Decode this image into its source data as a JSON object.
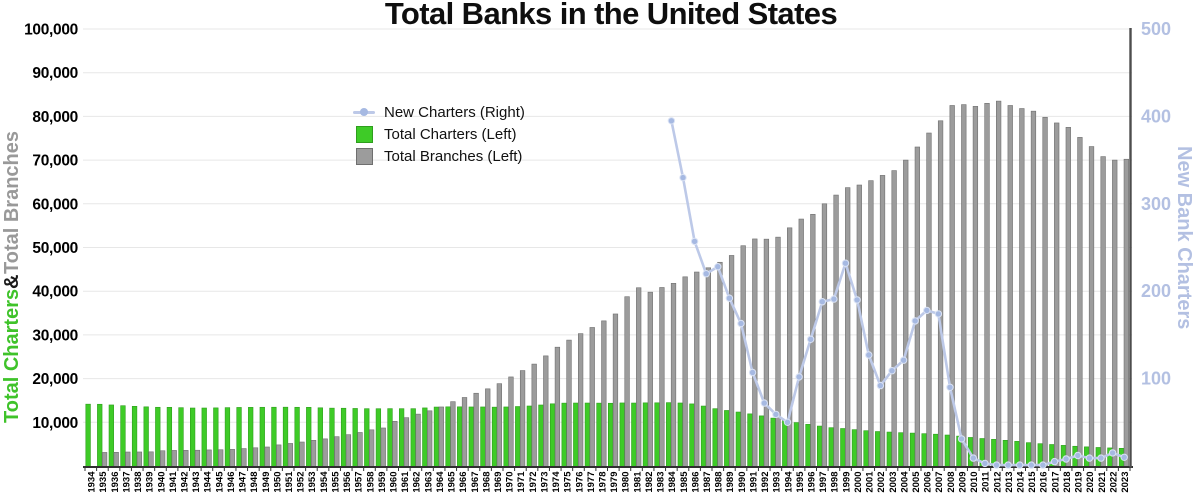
{
  "title": "Total Banks in the United States",
  "left_axis": {
    "title_charters": "Total Charters",
    "title_amp": " & ",
    "title_branches": "Total Branches",
    "ticks": [
      "10,000",
      "20,000",
      "30,000",
      "40,000",
      "50,000",
      "60,000",
      "70,000",
      "80,000",
      "90,000",
      "100,000"
    ]
  },
  "right_axis": {
    "title": "New Bank Charters",
    "ticks": [
      "100",
      "200",
      "300",
      "400",
      "500"
    ]
  },
  "legend": {
    "items": [
      {
        "label": "New Charters (Right)",
        "marker": "line-dot"
      },
      {
        "label": "Total Charters (Left)",
        "marker": "green-square"
      },
      {
        "label": "Total Branches (Left)",
        "marker": "gray-square"
      }
    ]
  },
  "colors": {
    "charters_green": "#3ecb27",
    "charters_green_edge": "#2e9e1d",
    "branches_gray": "#9c9c9c",
    "branches_gray_edge": "#6f6f6f",
    "line_blue": "#bdc9e8",
    "dot_blue": "#a6b9e2",
    "dot_edge": "#dbe3f4",
    "right_label_blue": "#b3c0e2",
    "left_title_green": "#3fc32a",
    "left_title_gray": "#999999",
    "gridline": "#e7e7e7",
    "x_axis_line": "#2f2f2f",
    "right_axis_line": "#4d4d4d",
    "tick_label_black": "#000000"
  },
  "chart_data": {
    "type": "bar",
    "title": "Total Banks in the United States",
    "left_ylabel": "Total Charters & Total Branches",
    "right_ylabel": "New Bank Charters",
    "left_ylim": [
      0,
      100000
    ],
    "right_ylim": [
      0,
      500
    ],
    "grid": true,
    "legend_position": "upper-left-inside",
    "categories": [
      "1934",
      "1935",
      "1936",
      "1937",
      "1938",
      "1939",
      "1940",
      "1941",
      "1942",
      "1943",
      "1944",
      "1945",
      "1946",
      "1947",
      "1948",
      "1949",
      "1950",
      "1951",
      "1952",
      "1953",
      "1954",
      "1955",
      "1956",
      "1957",
      "1958",
      "1959",
      "1960",
      "1961",
      "1962",
      "1963",
      "1964",
      "1965",
      "1966",
      "1967",
      "1968",
      "1969",
      "1970",
      "1971",
      "1972",
      "1973",
      "1974",
      "1975",
      "1976",
      "1977",
      "1978",
      "1979",
      "1980",
      "1981",
      "1982",
      "1983",
      "1984",
      "1985",
      "1986",
      "1987",
      "1988",
      "1989",
      "1990",
      "1991",
      "1992",
      "1993",
      "1994",
      "1995",
      "1996",
      "1997",
      "1998",
      "1999",
      "2000",
      "2001",
      "2002",
      "2003",
      "2004",
      "2005",
      "2006",
      "2007",
      "2008",
      "2009",
      "2010",
      "2011",
      "2012",
      "2013",
      "2014",
      "2015",
      "2016",
      "2017",
      "2018",
      "2019",
      "2020",
      "2021",
      "2022",
      "2023"
    ],
    "series": [
      {
        "name": "Total Charters (Left)",
        "type": "bar",
        "axis": "left",
        "values": [
          14150,
          14130,
          13970,
          13800,
          13660,
          13540,
          13440,
          13430,
          13350,
          13270,
          13270,
          13300,
          13360,
          13400,
          13420,
          13440,
          13450,
          13460,
          13440,
          13430,
          13320,
          13240,
          13220,
          13170,
          13120,
          13110,
          13130,
          13120,
          13120,
          13290,
          13490,
          13540,
          13540,
          13510,
          13510,
          13470,
          13510,
          13610,
          13730,
          13960,
          14230,
          14390,
          14410,
          14410,
          14390,
          14360,
          14430,
          14410,
          14450,
          14460,
          14500,
          14420,
          14210,
          13720,
          13120,
          12710,
          12350,
          11930,
          11470,
          10960,
          10450,
          9940,
          9530,
          9140,
          8770,
          8580,
          8320,
          8080,
          7890,
          7770,
          7630,
          7530,
          7400,
          7280,
          7090,
          6840,
          6530,
          6290,
          6100,
          5880,
          5640,
          5340,
          5110,
          4920,
          4720,
          4520,
          4380,
          4240,
          4140,
          4050
        ]
      },
      {
        "name": "Total Branches (Left)",
        "type": "bar",
        "axis": "left",
        "values": [
          0,
          3100,
          3130,
          3200,
          3210,
          3240,
          3490,
          3560,
          3580,
          3610,
          3680,
          3720,
          3810,
          3990,
          4170,
          4350,
          4830,
          5160,
          5490,
          5870,
          6210,
          6710,
          7170,
          7670,
          8280,
          8700,
          10220,
          11060,
          11870,
          12630,
          13510,
          14720,
          15680,
          16650,
          17660,
          18840,
          20380,
          21840,
          23320,
          25200,
          27190,
          28810,
          30290,
          31700,
          33210,
          34790,
          38740,
          40790,
          39780,
          40850,
          41800,
          43290,
          44390,
          45360,
          46620,
          48180,
          50410,
          51960,
          51910,
          52370,
          54500,
          56510,
          57600,
          60000,
          62000,
          63700,
          64300,
          65300,
          66500,
          67600,
          70000,
          73000,
          76200,
          79000,
          82500,
          82700,
          82300,
          83000,
          83500,
          82500,
          81800,
          81200,
          79800,
          78500,
          77500,
          75200,
          73100,
          70800,
          70000,
          70200
        ]
      },
      {
        "name": "New Charters (Right)",
        "type": "line",
        "axis": "right",
        "values": [
          null,
          null,
          null,
          null,
          null,
          null,
          null,
          null,
          null,
          null,
          null,
          null,
          null,
          null,
          null,
          null,
          null,
          null,
          null,
          null,
          null,
          null,
          null,
          null,
          null,
          null,
          null,
          null,
          null,
          null,
          null,
          null,
          null,
          null,
          null,
          null,
          null,
          null,
          null,
          null,
          null,
          null,
          null,
          null,
          null,
          null,
          null,
          null,
          null,
          null,
          395,
          330,
          257,
          220,
          228,
          192,
          163,
          107,
          72,
          59,
          50,
          102,
          145,
          188,
          191,
          232,
          190,
          127,
          92,
          109,
          121,
          166,
          178,
          174,
          90,
          31,
          9,
          3,
          1,
          1,
          1,
          1,
          1,
          5,
          8,
          12,
          9,
          9,
          15,
          10
        ]
      }
    ]
  }
}
